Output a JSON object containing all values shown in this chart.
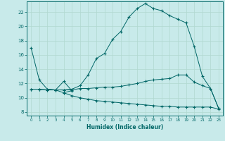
{
  "xlabel": "Humidex (Indice chaleur)",
  "bg_color": "#c8eaea",
  "line_color": "#006666",
  "grid_color": "#b0d8d0",
  "xlim": [
    -0.5,
    23.5
  ],
  "ylim": [
    7.5,
    23.5
  ],
  "yticks": [
    8,
    10,
    12,
    14,
    16,
    18,
    20,
    22
  ],
  "xticks": [
    0,
    1,
    2,
    3,
    4,
    5,
    6,
    7,
    8,
    9,
    10,
    11,
    12,
    13,
    14,
    15,
    16,
    17,
    18,
    19,
    20,
    21,
    22,
    23
  ],
  "series1_x": [
    0,
    1,
    2,
    3,
    4,
    5,
    6,
    7,
    8,
    9,
    10,
    11,
    12,
    13,
    14,
    15,
    16,
    17,
    18,
    19,
    20,
    21,
    22,
    23
  ],
  "series1_y": [
    17.0,
    12.5,
    11.2,
    11.1,
    11.1,
    11.2,
    11.7,
    13.2,
    15.5,
    16.2,
    18.2,
    19.3,
    21.3,
    22.5,
    23.2,
    22.5,
    22.2,
    21.5,
    21.0,
    20.5,
    17.2,
    13.0,
    11.3,
    8.5
  ],
  "series2_x": [
    0,
    1,
    2,
    3,
    4,
    5,
    6,
    7,
    8,
    9,
    10,
    11,
    12,
    13,
    14,
    15,
    16,
    17,
    18,
    19,
    20,
    21,
    22,
    23
  ],
  "series2_y": [
    11.2,
    11.2,
    11.1,
    11.1,
    11.1,
    11.1,
    11.3,
    11.3,
    11.4,
    11.5,
    11.5,
    11.6,
    11.8,
    12.0,
    12.3,
    12.5,
    12.6,
    12.7,
    13.2,
    13.2,
    12.2,
    11.7,
    11.3,
    8.5
  ],
  "series3_x": [
    2,
    3,
    4,
    5,
    4
  ],
  "series3_y": [
    11.2,
    11.1,
    12.3,
    11.0,
    10.7
  ],
  "series4_x": [
    0,
    1,
    2,
    3,
    4,
    5,
    6,
    7,
    8,
    9,
    10,
    11,
    12,
    13,
    14,
    15,
    16,
    17,
    18,
    19,
    20,
    21,
    22,
    23
  ],
  "series4_y": [
    11.2,
    11.2,
    11.1,
    11.1,
    10.7,
    10.3,
    10.0,
    9.8,
    9.6,
    9.5,
    9.4,
    9.3,
    9.2,
    9.1,
    9.0,
    8.9,
    8.8,
    8.8,
    8.7,
    8.7,
    8.7,
    8.7,
    8.7,
    8.4
  ]
}
